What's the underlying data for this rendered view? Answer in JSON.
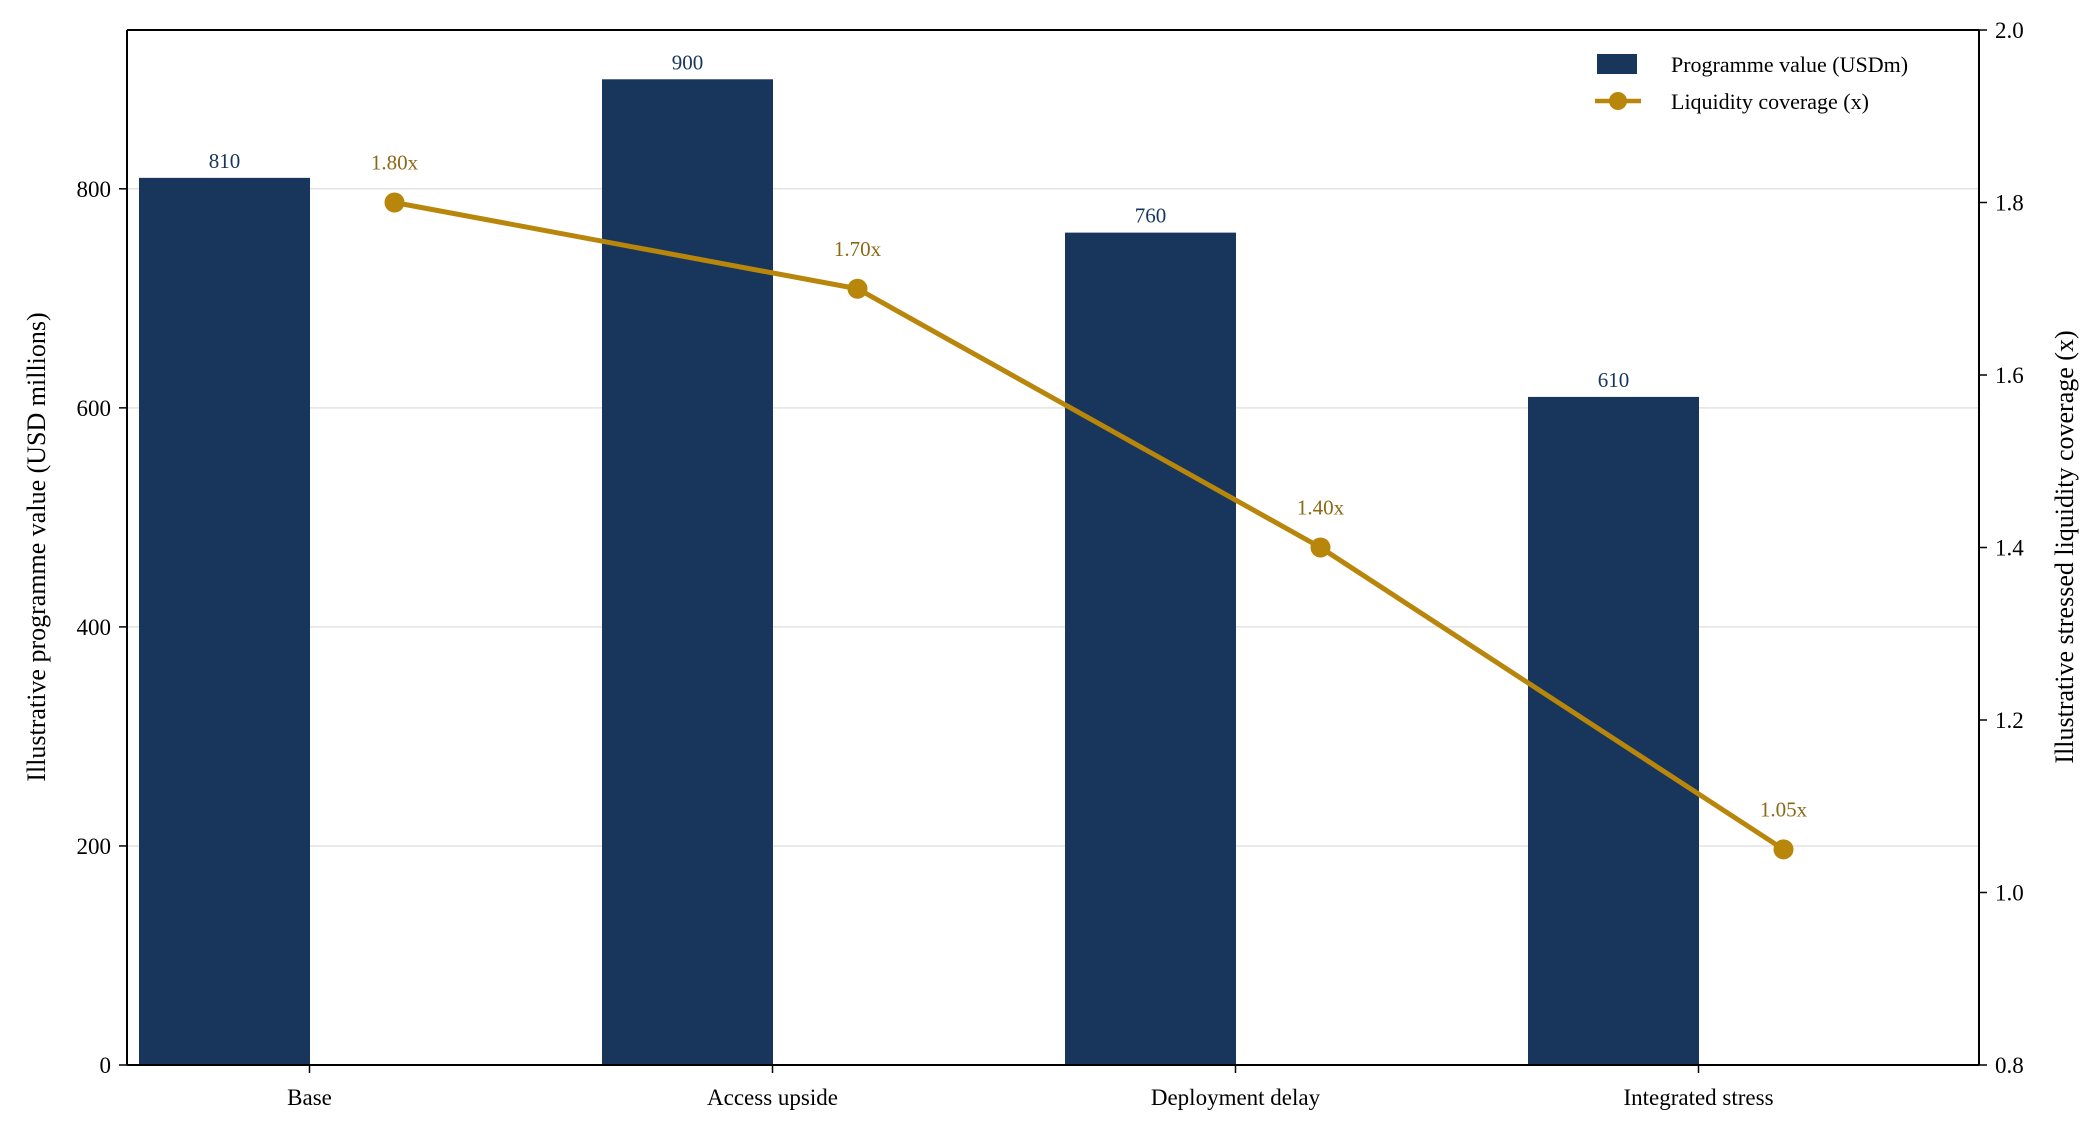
{
  "chart_data": {
    "type": "bar",
    "categories": [
      "Base",
      "Access upside",
      "Deployment delay",
      "Integrated stress"
    ],
    "series": [
      {
        "name": "Programme value (USDm)",
        "type": "bar",
        "axis": "left",
        "values": [
          810,
          900,
          760,
          610
        ],
        "labels": [
          "810",
          "900",
          "760",
          "610"
        ],
        "color": "#18365c"
      },
      {
        "name": "Liquidity coverage (x)",
        "type": "line",
        "axis": "right",
        "values": [
          1.8,
          1.7,
          1.4,
          1.05
        ],
        "labels": [
          "1.80x",
          "1.70x",
          "1.40x",
          "1.05x"
        ],
        "color": "#b8860b",
        "label_color": "#8b6914"
      }
    ],
    "ylabel": "Illustrative programme value (USD millions)",
    "y2label": "Illustrative stressed liquidity coverage (x)",
    "xlabel": "",
    "ylim": [
      0,
      945
    ],
    "y2lim": [
      0.8,
      2.0
    ],
    "yticks": [
      0,
      200,
      400,
      600,
      800
    ],
    "y2ticks": [
      0.8,
      1.0,
      1.2,
      1.4,
      1.6,
      1.8,
      2.0
    ],
    "ytick_labels": [
      "0",
      "200",
      "400",
      "600",
      "800"
    ],
    "y2tick_labels": [
      "0.8",
      "1.0",
      "1.2",
      "1.4",
      "1.6",
      "1.8",
      "2.0"
    ],
    "grid": "horizontal",
    "legend_position": "top-right"
  }
}
